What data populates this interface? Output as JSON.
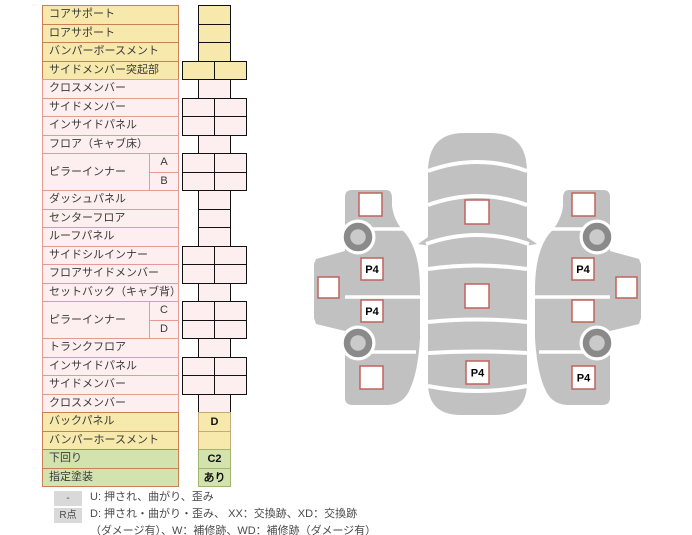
{
  "table": {
    "rows": [
      {
        "label": "コアサポート",
        "bg": "y",
        "cellBg": "y",
        "cells": "single"
      },
      {
        "label": "ロアサポート",
        "bg": "y",
        "cellBg": "y",
        "cells": "single"
      },
      {
        "label": "バンパーボースメント",
        "bg": "y",
        "cellBg": "y",
        "cells": "single"
      },
      {
        "label": "サイドメンバー突起部",
        "bg": "y",
        "cellBg": "y",
        "cells": "double"
      },
      {
        "label": "クロスメンバー",
        "bg": "p",
        "cellBg": "p",
        "cells": "single"
      },
      {
        "label": "サイドメンバー",
        "bg": "p",
        "cellBg": "p",
        "cells": "double"
      },
      {
        "label": "インサイドパネル",
        "bg": "p",
        "cellBg": "p",
        "cells": "double"
      },
      {
        "label": "フロア（キャブ床）",
        "bg": "p",
        "cellBg": "p",
        "cells": "single"
      },
      {
        "label": "ピラーインナー",
        "subs": [
          "A",
          "B"
        ],
        "bg": "p",
        "cellBg": "p",
        "cells": "double"
      },
      {
        "label": "ダッシュパネル",
        "bg": "p",
        "cellBg": "p",
        "cells": "single"
      },
      {
        "label": "センターフロア",
        "bg": "p",
        "cellBg": "p",
        "cells": "single"
      },
      {
        "label": "ルーフパネル",
        "bg": "p",
        "cellBg": "p",
        "cells": "single"
      },
      {
        "label": "サイドシルインナー",
        "bg": "p",
        "cellBg": "p",
        "cells": "double"
      },
      {
        "label": "フロアサイドメンバー",
        "bg": "p",
        "cellBg": "p",
        "cells": "double"
      },
      {
        "label": "セットバック（キャブ背）",
        "bg": "p",
        "cellBg": "p",
        "cells": "single"
      },
      {
        "label": "ピラーインナー",
        "subs": [
          "C",
          "D"
        ],
        "bg": "p",
        "cellBg": "p",
        "cells": "double"
      },
      {
        "label": "トランクフロア",
        "bg": "p",
        "cellBg": "p",
        "cells": "single"
      },
      {
        "label": "インサイドパネル",
        "bg": "p",
        "cellBg": "p",
        "cells": "double"
      },
      {
        "label": "サイドメンバー",
        "bg": "p",
        "cellBg": "p",
        "cells": "double"
      },
      {
        "label": "クロスメンバー",
        "bg": "p",
        "cellBg": "p",
        "cells": "single"
      },
      {
        "label": "バックパネル",
        "bg": "y",
        "cellBg": "y2",
        "cells": "single",
        "value": "D"
      },
      {
        "label": "バンパーホースメント",
        "bg": "y",
        "cellBg": "y2",
        "cells": "single",
        "value": ""
      },
      {
        "label": "下回り",
        "bg": "g",
        "cellBg": "g2",
        "cells": "single",
        "value": "C2"
      },
      {
        "label": "指定塗装",
        "bg": "g",
        "cellBg": "g2",
        "cells": "single",
        "value": "あり"
      }
    ]
  },
  "legend": {
    "line1": {
      "badge": "-",
      "text": "U: 押され、曲がり、歪み"
    },
    "line2": {
      "badge": "R点",
      "text": "D: 押され・曲がり・歪み、 XX：交換跡、XD：交換跡"
    },
    "line3": {
      "text": "（ダメージ有）、W：補修跡、WD：補修跡（ダメージ有）"
    }
  },
  "diagram": {
    "markers": [
      {
        "pos": "left-front-fender",
        "label": ""
      },
      {
        "pos": "left-front-door",
        "label": "P4"
      },
      {
        "pos": "left-rear-door",
        "label": "P4"
      },
      {
        "pos": "left-rear-quarter",
        "label": ""
      },
      {
        "pos": "left-glass",
        "label": ""
      },
      {
        "pos": "hood",
        "label": ""
      },
      {
        "pos": "roof",
        "label": ""
      },
      {
        "pos": "trunk",
        "label": "P4"
      },
      {
        "pos": "right-front-fender",
        "label": ""
      },
      {
        "pos": "right-front-door",
        "label": "P4"
      },
      {
        "pos": "right-rear-door",
        "label": ""
      },
      {
        "pos": "right-rear-quarter",
        "label": "P4"
      },
      {
        "pos": "right-glass",
        "label": ""
      }
    ]
  },
  "colors": {
    "yellow_fill": "#f6e9ab",
    "yellow_border": "#cb8053",
    "pink_fill": "#fdeef0",
    "pink_border": "#e79993",
    "green_fill": "#d3e3ae",
    "value_yellow_border": "#c2ab79",
    "value_green_border": "#a2b46f",
    "car_body": "#c2c1c1",
    "wheel_ring": "#8a8a8a",
    "wheel_hub": "#cacaca",
    "marker_border": "#c1625d",
    "legend_badge": "#d9d9d9"
  }
}
